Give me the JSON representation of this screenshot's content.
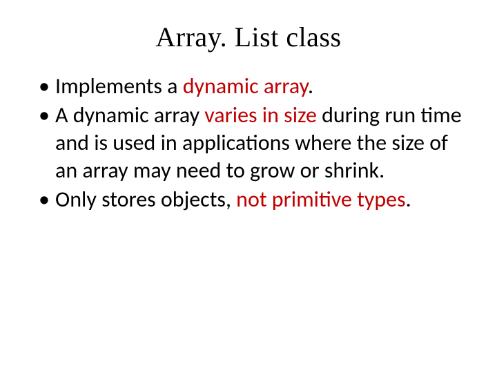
{
  "slide": {
    "title": "Array. List class",
    "title_font": "Garamond",
    "title_fontsize": 40,
    "body_font": "Calibri",
    "body_fontsize": 32,
    "colors": {
      "background": "#ffffff",
      "text": "#000000",
      "highlight": "#c00000"
    },
    "bullets": [
      {
        "segments": [
          {
            "text": "Implements a ",
            "highlight": false
          },
          {
            "text": "dynamic array",
            "highlight": true
          },
          {
            "text": ".",
            "highlight": false
          }
        ]
      },
      {
        "segments": [
          {
            "text": "A dynamic array ",
            "highlight": false
          },
          {
            "text": "varies in size ",
            "highlight": true
          },
          {
            "text": "during run time and is used in applications where the size of an array may need to grow or shrink.",
            "highlight": false
          }
        ]
      },
      {
        "segments": [
          {
            "text": "Only stores objects, ",
            "highlight": false
          },
          {
            "text": "not primitive types",
            "highlight": true
          },
          {
            "text": ".",
            "highlight": false
          }
        ]
      }
    ]
  }
}
